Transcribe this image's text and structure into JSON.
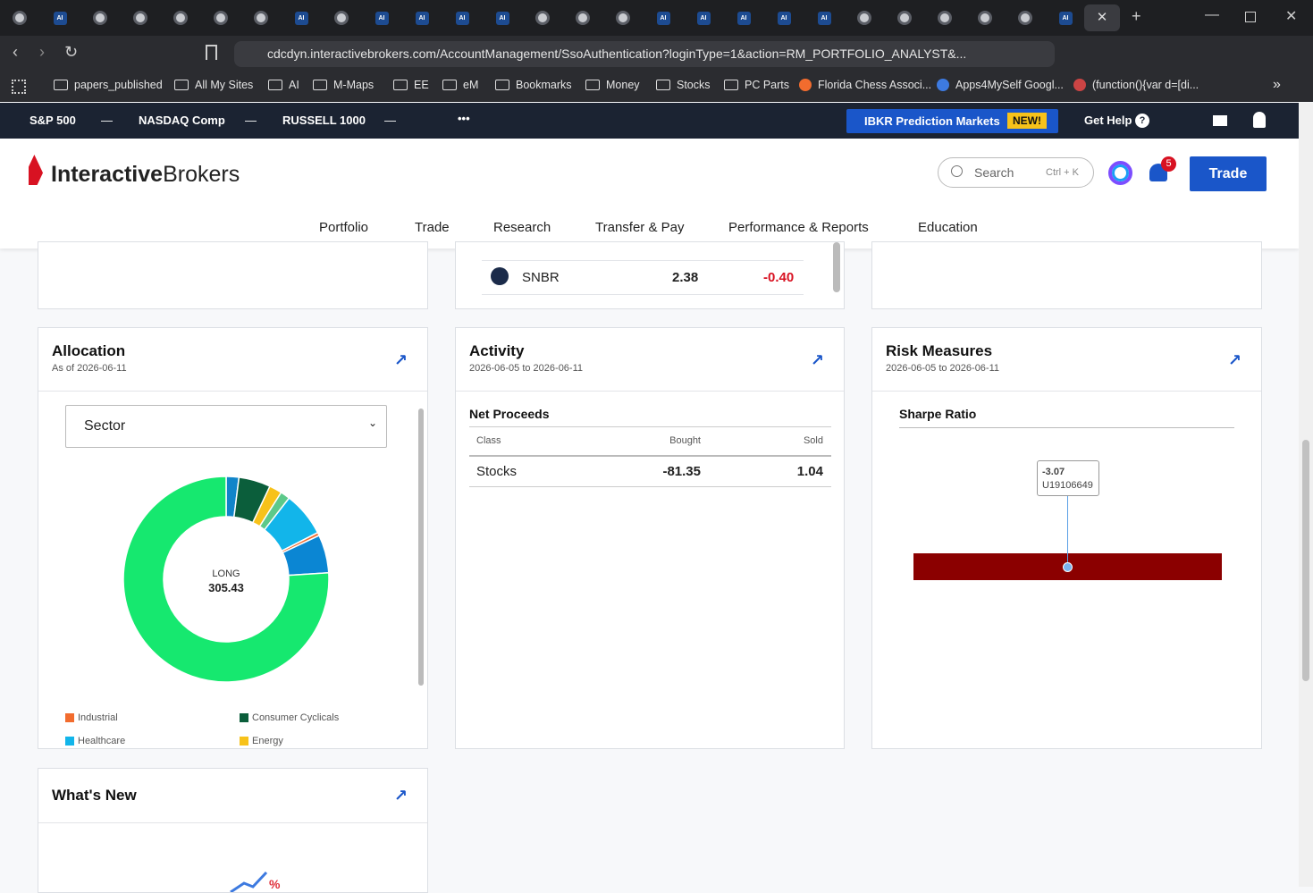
{
  "browser": {
    "tabs": [
      null,
      "AI",
      null,
      null,
      null,
      null,
      null,
      "AI",
      null,
      "AI",
      "AI",
      "AI",
      "AI",
      null,
      null,
      null,
      "AI",
      "AI",
      "AI",
      "AI",
      "AI",
      null,
      null,
      null,
      null,
      null,
      "AI",
      null
    ],
    "url": "cdcdyn.interactivebrokers.com/AccountManagement/SsoAuthentication?loginType=1&action=RM_PORTFOLIO_ANALYST&...",
    "bookmarks": [
      "papers_published",
      "All My Sites",
      "AI",
      "M-Maps",
      "EE",
      "eM",
      "Bookmarks",
      "Money",
      "Stocks",
      "PC Parts",
      "Florida Chess Associ...",
      "Apps4MySelf Googl...",
      "(function(){var d=[di..."
    ]
  },
  "ticker": {
    "items": [
      {
        "name": "S&P 500",
        "value": "—"
      },
      {
        "name": "NASDAQ Comp",
        "value": "—"
      },
      {
        "name": "RUSSELL 1000",
        "value": "—"
      }
    ],
    "more": "•••",
    "promo": "IBKR Prediction Markets",
    "promo_badge": "NEW!",
    "help": "Get Help",
    "help_icon": "?"
  },
  "header": {
    "logo_bold": "Interactive",
    "logo_rest": "Brokers",
    "search": "Search",
    "search_shortcut": "Ctrl + K",
    "notifications": "5",
    "trade": "Trade",
    "nav": [
      "Portfolio",
      "Trade",
      "Research",
      "Transfer & Pay",
      "Performance & Reports",
      "Education"
    ]
  },
  "top_row": {
    "symbol": "SNBR",
    "price": "2.38",
    "change": "-0.40"
  },
  "allocation": {
    "title": "Allocation",
    "subtitle": "As of 2026-06-11",
    "select": "Sector",
    "center_label": "LONG",
    "center_value": "305.43",
    "chart_data": {
      "type": "pie",
      "values": [
        2,
        5,
        2,
        1.5,
        7,
        0.5,
        6,
        76
      ],
      "colors": [
        "#1185c9",
        "#0b5e3b",
        "#f7c21a",
        "#5cc98a",
        "#12b5ea",
        "#f26c2e",
        "#0b86d3",
        "#16e86f"
      ]
    },
    "legend": [
      {
        "name": "Industrial",
        "color": "#f26c2e"
      },
      {
        "name": "Consumer Cyclicals",
        "color": "#0b5e3b"
      },
      {
        "name": "Healthcare",
        "color": "#12b5ea"
      },
      {
        "name": "Energy",
        "color": "#f7c21a"
      }
    ]
  },
  "activity": {
    "title": "Activity",
    "subtitle": "2026-06-05 to 2026-06-11",
    "section": "Net Proceeds",
    "table": {
      "header": [
        "Class",
        "Bought",
        "Sold"
      ],
      "rows": [
        [
          "Stocks",
          "-81.35",
          "1.04"
        ]
      ]
    }
  },
  "risk": {
    "title": "Risk Measures",
    "subtitle": "2026-06-05 to 2026-06-11",
    "section": "Sharpe Ratio",
    "value": "-3.07",
    "account": "U19106649",
    "color": "#8b0000"
  },
  "whats_new": {
    "title": "What's New"
  }
}
